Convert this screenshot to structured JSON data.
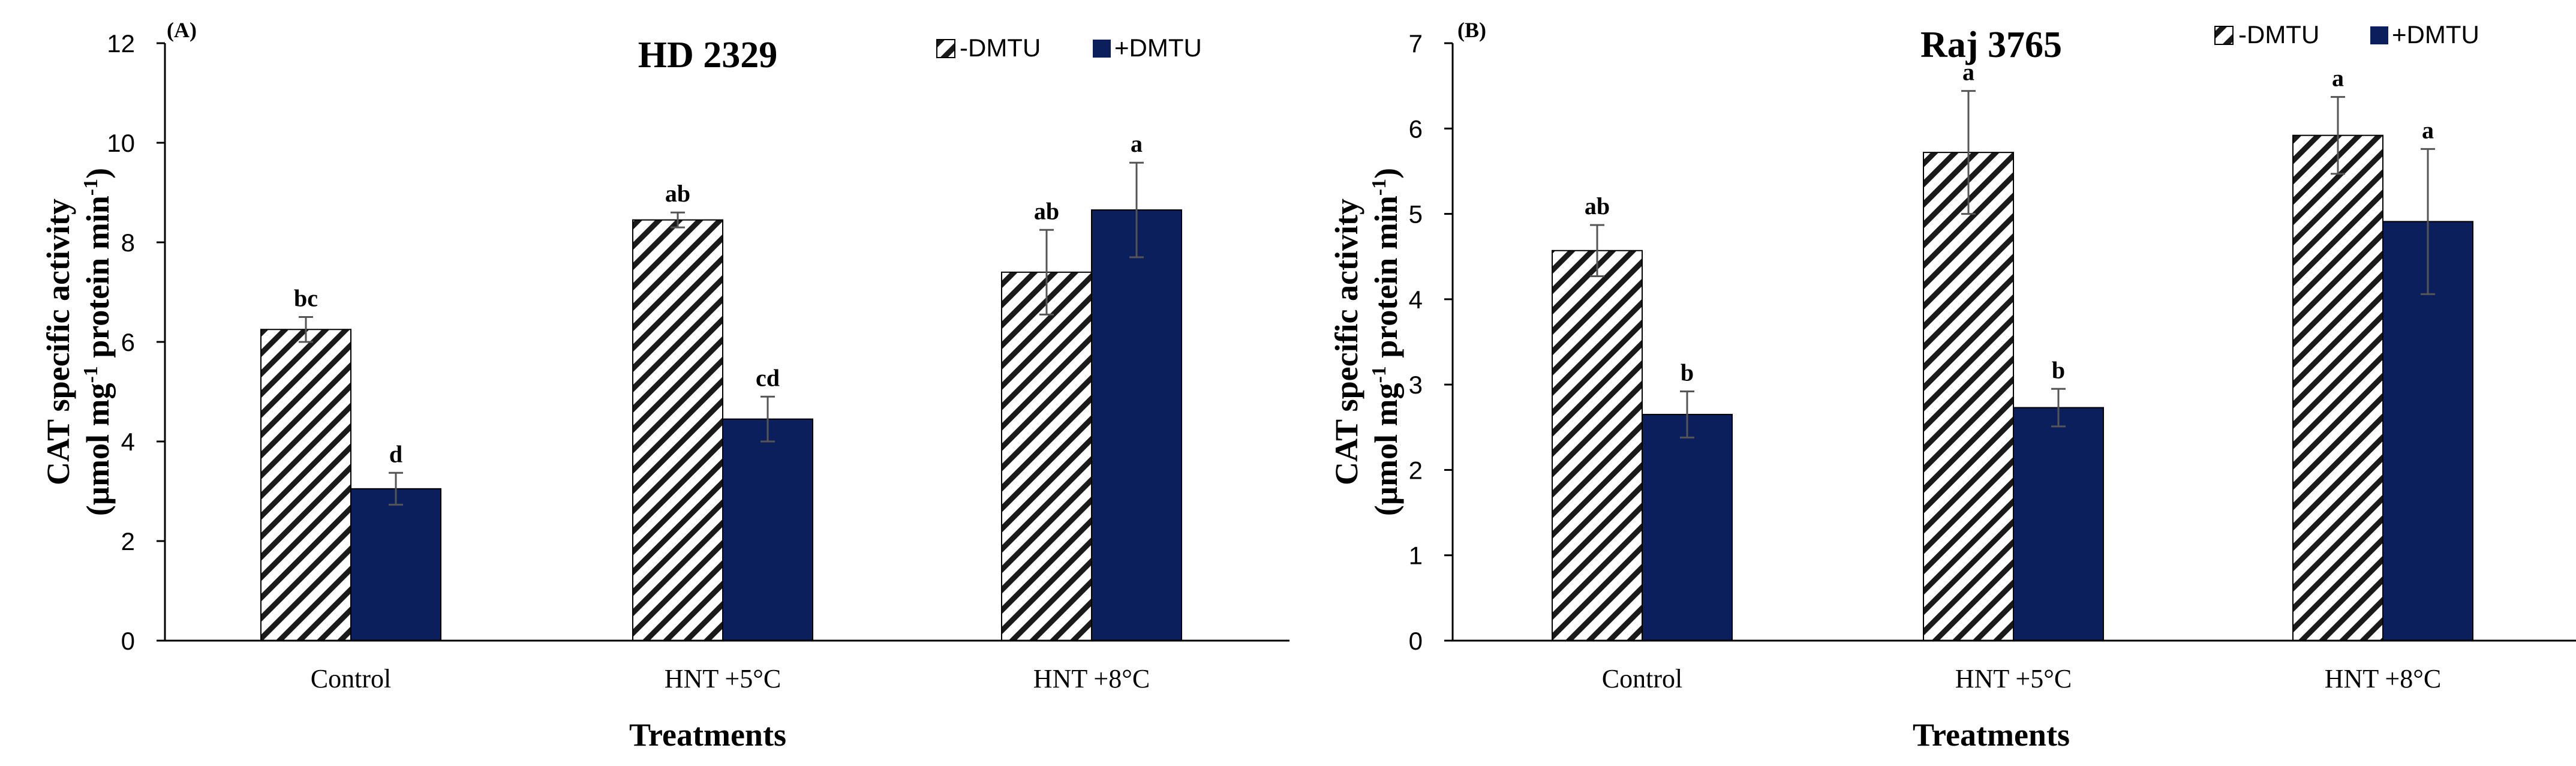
{
  "chart_data": [
    {
      "type": "bar",
      "panel_label": "(A)",
      "title": "HD 2329",
      "xlabel": "Treatments",
      "ylabel_line1": "CAT specific activity",
      "ylabel_line2_pre": "(µmol  mg",
      "ylabel_sup1": "-1",
      "ylabel_line2_mid": " protein min",
      "ylabel_sup2": "-1",
      "ylabel_line2_post": ")",
      "ylim": [
        0,
        12
      ],
      "yticks": [
        0,
        2,
        4,
        6,
        8,
        10,
        12
      ],
      "categories": [
        "Control",
        "HNT +5°C",
        "HNT +8°C"
      ],
      "legend_position": "top-right",
      "series": [
        {
          "name": "-DMTU",
          "style": "hatched",
          "values": [
            6.25,
            8.45,
            7.4
          ],
          "errors": [
            0.25,
            0.15,
            0.85
          ],
          "letters": [
            "bc",
            "ab",
            "ab"
          ]
        },
        {
          "name": "+DMTU",
          "style": "solid",
          "color": "#0b1f5c",
          "values": [
            3.05,
            4.45,
            8.65
          ],
          "errors": [
            0.32,
            0.45,
            0.95
          ],
          "letters": [
            "d",
            "cd",
            "a"
          ]
        }
      ]
    },
    {
      "type": "bar",
      "panel_label": "(B)",
      "title": "Raj 3765",
      "xlabel": "Treatments",
      "ylabel_line1": "CAT specific activity",
      "ylabel_line2_pre": "(µmol  mg",
      "ylabel_sup1": "-1",
      "ylabel_line2_mid": " protein min",
      "ylabel_sup2": "-1",
      "ylabel_line2_post": ")",
      "ylim": [
        0,
        7
      ],
      "yticks": [
        0,
        1,
        2,
        3,
        4,
        5,
        6,
        7
      ],
      "categories": [
        "Control",
        "HNT +5°C",
        "HNT +8°C"
      ],
      "legend_position": "top-right",
      "series": [
        {
          "name": "-DMTU",
          "style": "hatched",
          "values": [
            4.57,
            5.72,
            5.92
          ],
          "errors": [
            0.3,
            0.72,
            0.45
          ],
          "letters": [
            "ab",
            "a",
            "a"
          ]
        },
        {
          "name": "+DMTU",
          "style": "solid",
          "color": "#0b1f5c",
          "values": [
            2.65,
            2.73,
            4.91
          ],
          "errors": [
            0.27,
            0.22,
            0.85
          ],
          "letters": [
            "b",
            "b",
            "a"
          ]
        }
      ]
    }
  ]
}
